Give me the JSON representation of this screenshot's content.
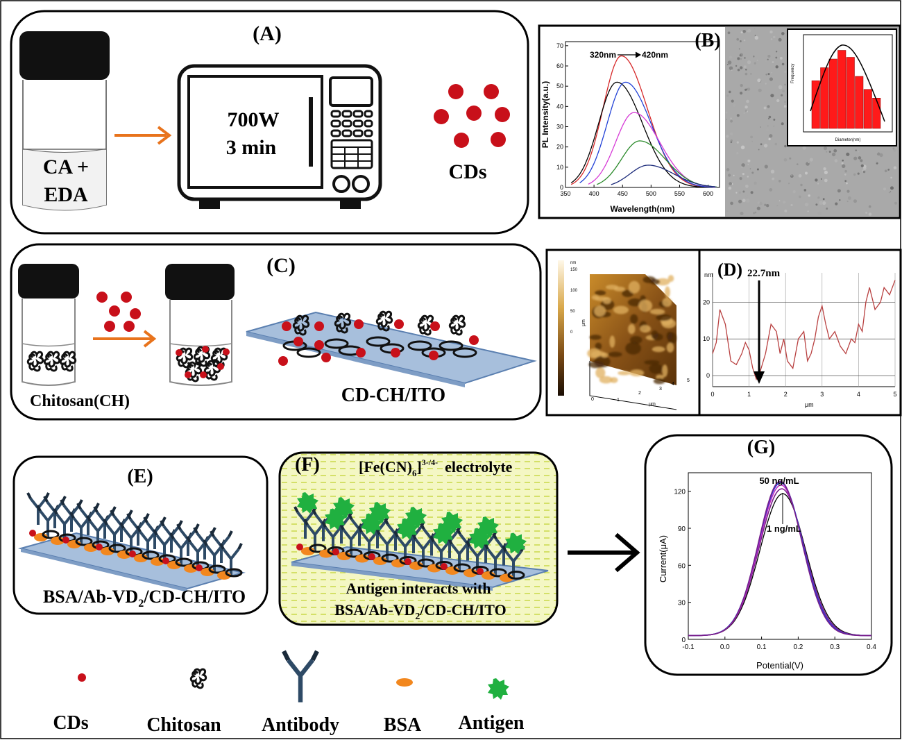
{
  "panel_a": {
    "label": "(A)",
    "vial_text_1": "CA +",
    "vial_text_2": "EDA",
    "microwave_power": "700W",
    "microwave_time": "3 min",
    "product": "CDs"
  },
  "panel_b": {
    "label": "(B)",
    "annotation_start": "320nm",
    "annotation_end": "420nm",
    "chart_data": {
      "type": "line",
      "xlabel": "Wavelength(nm)",
      "ylabel": "PL Intensity(a.u.)",
      "xlim": [
        350,
        620
      ],
      "ylim": [
        0,
        72
      ],
      "xticks": [
        350,
        400,
        450,
        500,
        550,
        600
      ],
      "yticks": [
        0,
        10,
        20,
        30,
        40,
        50,
        60,
        70
      ],
      "series": [
        {
          "color": "#d62728",
          "peak_x": 448,
          "peak_y": 65,
          "start_x": 360,
          "end_x": 615
        },
        {
          "color": "#000000",
          "peak_x": 440,
          "peak_y": 52,
          "start_x": 360,
          "end_x": 610
        },
        {
          "color": "#1f3fd6",
          "peak_x": 455,
          "peak_y": 52,
          "start_x": 375,
          "end_x": 615
        },
        {
          "color": "#d63ad6",
          "peak_x": 470,
          "peak_y": 37,
          "start_x": 390,
          "end_x": 615
        },
        {
          "color": "#2a8a2a",
          "peak_x": 480,
          "peak_y": 23,
          "start_x": 405,
          "end_x": 615
        },
        {
          "color": "#1b2a7a",
          "peak_x": 495,
          "peak_y": 11,
          "start_x": 430,
          "end_x": 615
        }
      ]
    },
    "histogram": {
      "ylabel": "Frequency",
      "xlabel": "Diameter(nm)",
      "bar_heights": [
        0.55,
        0.7,
        0.8,
        0.9,
        0.82,
        0.6,
        0.45,
        0.35
      ]
    }
  },
  "panel_c": {
    "label": "(C)",
    "vial_label": "Chitosan(CH)",
    "film_label": "CD-CH/ITO"
  },
  "panel_d": {
    "label": "(D)",
    "height_marker": "22.7nm",
    "afm_x_ticks": [
      "0",
      "1",
      "2",
      "3",
      "4",
      "5"
    ],
    "afm_x_unit": "μm",
    "afm_y_ticks": [
      "0",
      "1",
      "2",
      "3",
      "4",
      "5"
    ],
    "afm_y_unit": "μm",
    "afm_z_unit": "nm",
    "afm_z_ticks": [
      "150",
      "100",
      "50",
      "0"
    ],
    "chart_data": {
      "type": "line",
      "xlabel": "μm",
      "ylabel": "nm",
      "xlim": [
        0,
        5
      ],
      "ylim": [
        -3,
        28
      ],
      "xticks": [
        "0",
        "1",
        "2",
        "3",
        "4",
        "5"
      ],
      "yticks": [
        "0",
        "10",
        "20"
      ],
      "x": [
        0.0,
        0.1,
        0.2,
        0.35,
        0.5,
        0.65,
        0.8,
        0.9,
        1.0,
        1.1,
        1.2,
        1.3,
        1.45,
        1.6,
        1.75,
        1.85,
        1.95,
        2.05,
        2.2,
        2.35,
        2.5,
        2.6,
        2.7,
        2.8,
        2.9,
        3.0,
        3.1,
        3.2,
        3.35,
        3.5,
        3.65,
        3.8,
        3.9,
        4.0,
        4.1,
        4.2,
        4.3,
        4.45,
        4.6,
        4.7,
        4.85,
        5.0
      ],
      "y": [
        6,
        9,
        18,
        14,
        4,
        3,
        6,
        9,
        7,
        2,
        -1,
        1,
        6,
        14,
        12,
        6,
        10,
        4,
        2,
        10,
        12,
        4,
        6,
        10,
        16,
        19,
        14,
        10,
        12,
        8,
        6,
        10,
        9,
        14,
        12,
        20,
        24,
        18,
        20,
        24,
        22,
        26
      ]
    }
  },
  "panel_e": {
    "label": "(E)",
    "caption_prefix": "BSA/Ab-VD",
    "caption_sub": "2",
    "caption_suffix": "/CD-CH/ITO"
  },
  "panel_f": {
    "label": "(F)",
    "electrolyte_prefix": "[Fe(CN)",
    "electrolyte_sub": "6",
    "electrolyte_close": "]",
    "electrolyte_sup": "3-/4-",
    "electrolyte_word": "electrolyte",
    "caption_line1": "Antigen interacts with",
    "caption_line2_prefix": "BSA/Ab-VD",
    "caption_line2_sub": "2",
    "caption_line2_suffix": "/CD-CH/ITO"
  },
  "panel_g": {
    "label": "(G)",
    "annotation_high": "50 ng/mL",
    "annotation_low": "1 ng/mL",
    "chart_data": {
      "type": "line",
      "xlabel": "Potential(V)",
      "ylabel": "Current(μA)",
      "xlim": [
        -0.1,
        0.4
      ],
      "ylim": [
        0,
        135
      ],
      "xticks": [
        "-0.1",
        "0.0",
        "0.1",
        "0.2",
        "0.3",
        "0.4"
      ],
      "yticks": [
        "0",
        "30",
        "60",
        "90",
        "120"
      ],
      "series": [
        {
          "color": "#000000",
          "peak_x": 0.158,
          "peak_y": 118,
          "width": 0.068
        },
        {
          "color": "#7a1f8a",
          "peak_x": 0.155,
          "peak_y": 122,
          "width": 0.067
        },
        {
          "color": "#c42ac4",
          "peak_x": 0.153,
          "peak_y": 125,
          "width": 0.066
        },
        {
          "color": "#1f3fd6",
          "peak_x": 0.152,
          "peak_y": 127,
          "width": 0.066
        },
        {
          "color": "#7a1f8a",
          "peak_x": 0.151,
          "peak_y": 128,
          "width": 0.065
        }
      ]
    }
  },
  "legend": {
    "cds": "CDs",
    "chitosan": "Chitosan",
    "antibody": "Antibody",
    "bsa": "BSA",
    "antigen": "Antigen"
  },
  "colors": {
    "cd_red": "#c8101a",
    "arrow_orange": "#e8731c",
    "bsa_orange": "#f2871e",
    "antigen_green": "#20b040",
    "antibody_blue": "#2e4a66",
    "substrate_blue": "#a7bfdc",
    "electrolyte_yellow": "#f2f5b8"
  }
}
